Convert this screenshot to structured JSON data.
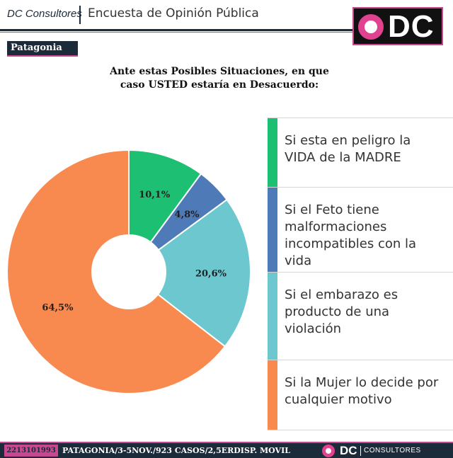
{
  "header": {
    "brand": "DC Consultores",
    "title": "Encuesta de Opinión Pública",
    "logo_text": "DC"
  },
  "region": "Patagonia",
  "question": {
    "line1": "Ante estas Posibles Situaciones, en que",
    "line2": "caso USTED estaría en Desacuerdo:"
  },
  "chart_data": {
    "type": "pie",
    "donut": true,
    "title": "Ante estas Posibles Situaciones, en que caso USTED estaría en Desacuerdo:",
    "legend_position": "right",
    "slices": [
      {
        "label": "Si esta en peligro la VIDA de la MADRE",
        "value": 10.1,
        "display": "10,1%",
        "color": "#1dbf73"
      },
      {
        "label": "Si el Feto tiene malformaciones incompatibles con la vida",
        "value": 4.8,
        "display": "4,8%",
        "color": "#4f7ab8"
      },
      {
        "label": "Si el embarazo es producto de una violación",
        "value": 20.6,
        "display": "20,6%",
        "color": "#6cc7cf"
      },
      {
        "label": "Si la Mujer lo decide por cualquier motivo",
        "value": 64.5,
        "display": "64,5%",
        "color": "#f98a4f"
      }
    ]
  },
  "legend": {
    "items": [
      {
        "lines": [
          "Si esta en peligro la",
          "VIDA de la MADRE"
        ]
      },
      {
        "lines": [
          "Si el Feto tiene",
          "malformaciones",
          "incompatibles con la",
          "vida"
        ]
      },
      {
        "lines": [
          "Si el embarazo es",
          "producto de una",
          "violación"
        ]
      },
      {
        "lines": [
          "Si la Mujer lo decide por",
          "cualquier motivo"
        ]
      }
    ]
  },
  "footer": {
    "code": "2213101993",
    "meta": "PATAGONIA/3-5NOV./923 CASOS/2,5ERDISP. MOVIL",
    "logo_dc": "DC",
    "logo_consultores": "CONSULTORES"
  }
}
